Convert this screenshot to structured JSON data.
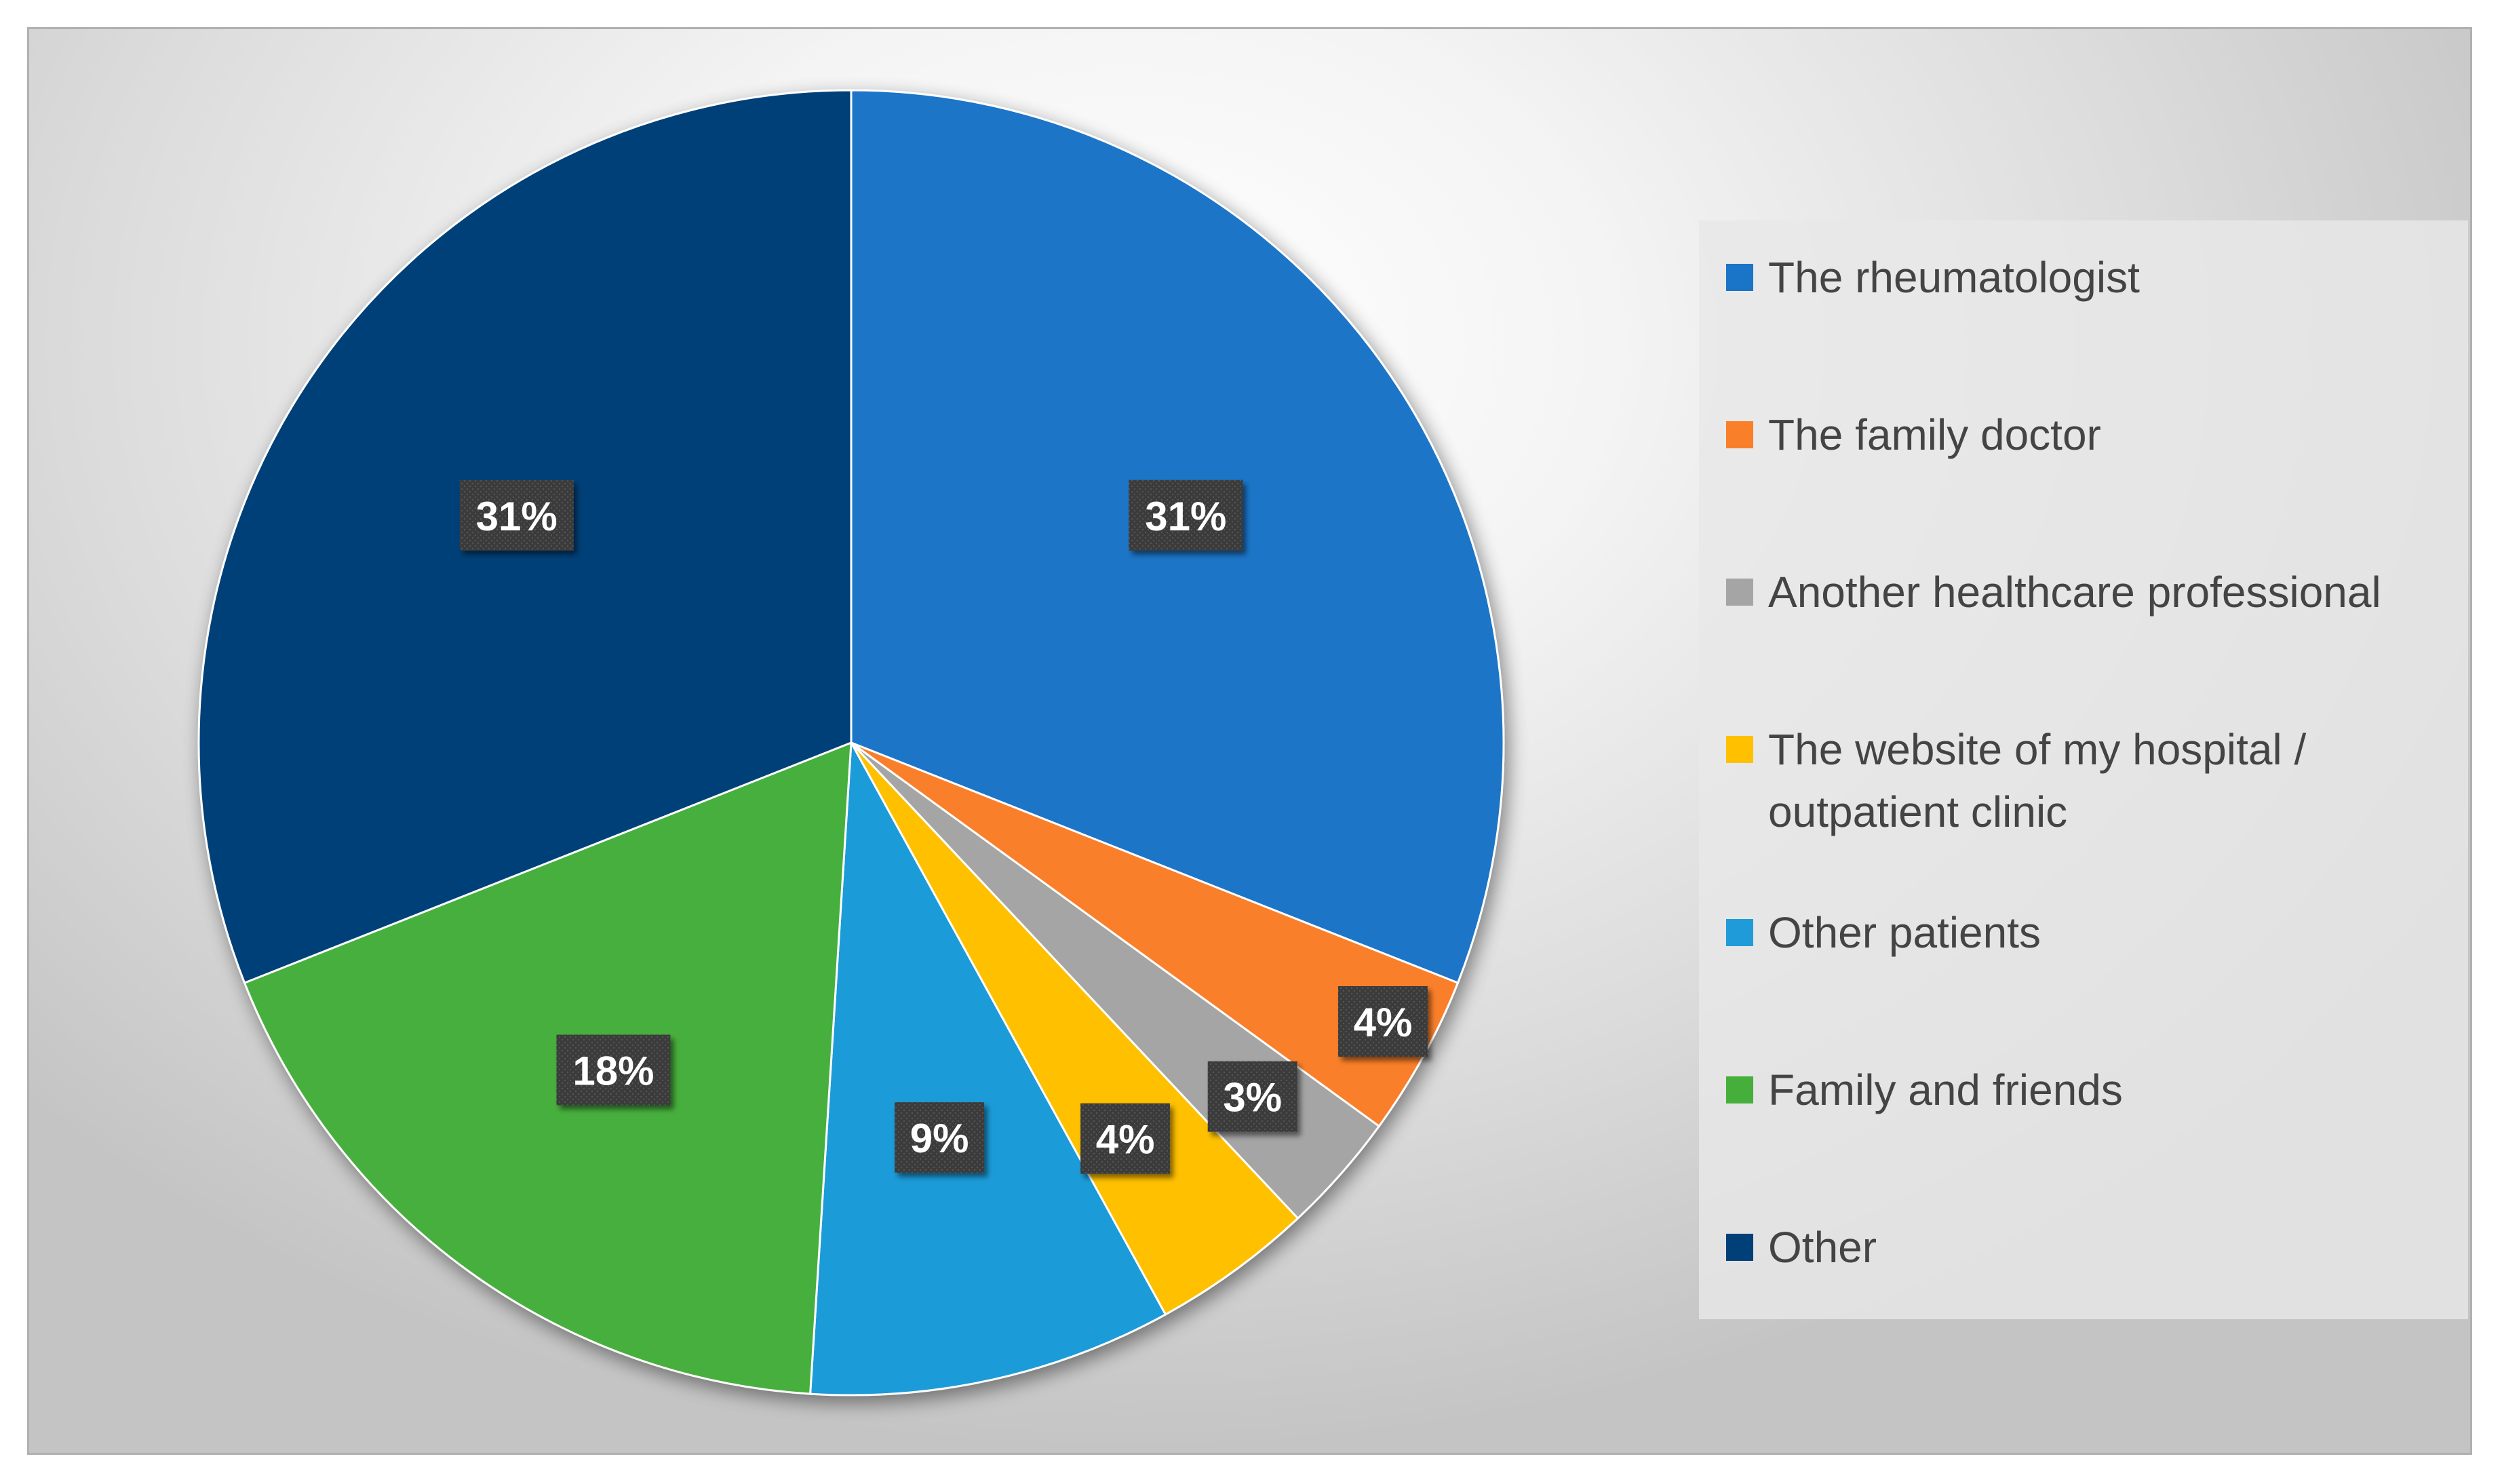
{
  "chart_data": {
    "type": "pie",
    "title": "",
    "start_angle_deg": 0,
    "direction": "clockwise",
    "legend_position": "right",
    "slices": [
      {
        "label": "The rheumatologist",
        "value": 31,
        "display": "31%",
        "color": "#1A74C7"
      },
      {
        "label": "The family doctor",
        "value": 4,
        "display": "4%",
        "color": "#FA7F29"
      },
      {
        "label": "Another healthcare professional",
        "value": 3,
        "display": "3%",
        "color": "#A5A5A5"
      },
      {
        "label": "The website of my hospital / outpatient clinic",
        "value": 4,
        "display": "4%",
        "color": "#FFC000"
      },
      {
        "label": "Other patients",
        "value": 9,
        "display": "9%",
        "color": "#1F9BD9"
      },
      {
        "label": "Family and friends",
        "value": 18,
        "display": "18%",
        "color": "#46AF3C"
      },
      {
        "label": "Other",
        "value": 31,
        "display": "31%",
        "color": "#003F78"
      }
    ]
  },
  "legend": {
    "items": [
      {
        "label": "The rheumatologist",
        "color": "#1A74C7"
      },
      {
        "label": "The family doctor",
        "color": "#FA7F29"
      },
      {
        "label": "Another healthcare professional",
        "color": "#A5A5A5"
      },
      {
        "label": "The website of my hospital /\noutpatient clinic",
        "color": "#FFC000"
      },
      {
        "label": "Other patients",
        "color": "#1F9BD9"
      },
      {
        "label": "Family and friends",
        "color": "#46AF3C"
      },
      {
        "label": "Other",
        "color": "#003F78"
      }
    ]
  },
  "data_label_style": {
    "background": "#3a3a3a",
    "text_color": "#ffffff"
  }
}
